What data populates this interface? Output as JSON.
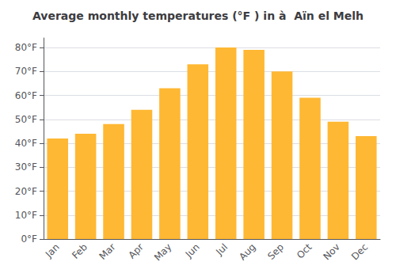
{
  "chart_data": {
    "type": "bar",
    "title": "Average monthly temperatures (°F ) in à  Aïn el Melh",
    "categories": [
      "Jan",
      "Feb",
      "Mar",
      "Apr",
      "May",
      "Jun",
      "Jul",
      "Aug",
      "Sep",
      "Oct",
      "Nov",
      "Dec"
    ],
    "values": [
      42,
      44,
      48,
      54,
      63,
      73,
      80,
      79,
      70,
      59,
      49,
      43
    ],
    "color": "#FFB833",
    "ylim": [
      0,
      84
    ],
    "yticks": [
      {
        "value": 0,
        "label": "0°F"
      },
      {
        "value": 10,
        "label": "10°F"
      },
      {
        "value": 20,
        "label": "20°F"
      },
      {
        "value": 30,
        "label": "30°F"
      },
      {
        "value": 40,
        "label": "40°F"
      },
      {
        "value": 50,
        "label": "50°F"
      },
      {
        "value": 60,
        "label": "60°F"
      },
      {
        "value": 70,
        "label": "70°F"
      },
      {
        "value": 80,
        "label": "80°F"
      }
    ],
    "grid": true
  }
}
